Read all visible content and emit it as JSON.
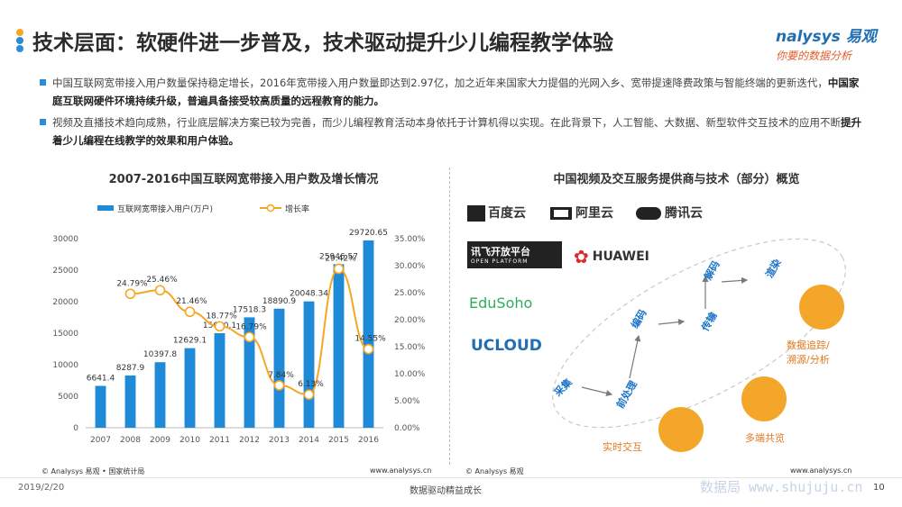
{
  "header": {
    "title": "技术层面：软硬件进一步普及，技术驱动提升少儿编程教学体验",
    "dot_colors": [
      "#f5a623",
      "#2b8bd6",
      "#2b8bd6"
    ],
    "logo_en": "nalysys 易观",
    "logo_cn": "你要的数据分析"
  },
  "bullets": [
    {
      "text_a": "中国互联网宽带接入用户数量保持稳定增长，2016年宽带接入用户数量即达到2.97亿，加之近年来国家大力提倡的光网入乡、宽带提速降费政策与智能终端的更新迭代，",
      "strong": "中国家庭互联网硬件环境持续升级，普遍具备接受较高质量的远程教育的能力。"
    },
    {
      "text_a": "视频及直播技术趋向成熟，行业底层解决方案已较为完善，而少儿编程教育活动本身依托于计算机得以实现。在此背景下，人工智能、大数据、新型软件交互技术的应用不断",
      "strong": "提升着少儿编程在线教学的效果和用户体验。"
    }
  ],
  "left_panel": {
    "source": "© Analysys 易观 • 国家统计局",
    "url": "www.analysys.cn"
  },
  "chart_data": {
    "type": "bar",
    "title": "2007-2016中国互联网宽带接入用户数及增长情况",
    "categories": [
      "2007",
      "2008",
      "2009",
      "2010",
      "2011",
      "2012",
      "2013",
      "2014",
      "2015",
      "2016"
    ],
    "series": [
      {
        "name": "互联网宽带接入用户(万户)",
        "type": "bar",
        "axis": "left",
        "color": "#1f8ad8",
        "values": [
          6641.4,
          8287.9,
          10397.8,
          12629.1,
          15000.1,
          17518.3,
          18890.9,
          20048.34,
          25946.57,
          29720.65
        ],
        "labels": [
          "6641.4",
          "8287.9",
          "10397.8",
          "12629.1",
          "15000.1",
          "17518.3",
          "18890.9",
          "20048.34",
          "25946.57",
          "29720.65"
        ]
      },
      {
        "name": "增长率",
        "type": "line",
        "axis": "right",
        "color": "#f5a623",
        "values": [
          null,
          24.79,
          25.46,
          21.46,
          18.77,
          16.79,
          7.84,
          6.13,
          29.42,
          14.55
        ],
        "labels": [
          "",
          "24.79%",
          "25.46%",
          "21.46%",
          "18.77%",
          "16.79%",
          "7.84%",
          "6.13%",
          "29.42%",
          "14.55%"
        ]
      }
    ],
    "y_left": {
      "min": 0,
      "max": 30000,
      "ticks": [
        "0",
        "5000",
        "10000",
        "15000",
        "20000",
        "25000",
        "30000"
      ]
    },
    "y_right": {
      "min": 0,
      "max": 35,
      "ticks": [
        "0.00%",
        "5.00%",
        "10.00%",
        "15.00%",
        "20.00%",
        "25.00%",
        "30.00%",
        "35.00%"
      ]
    },
    "grid": false,
    "legend": "top-left"
  },
  "right_panel": {
    "title": "中国视频及交互服务提供商与技术（部分）概览",
    "brands": [
      {
        "name": "百度云",
        "color": "#222222"
      },
      {
        "name": "阿里云",
        "color": "#222222"
      },
      {
        "name": "腾讯云",
        "color": "#222222"
      },
      {
        "name": "讯飞开放平台",
        "sub": "OPEN PLATFORM",
        "color": "#222222"
      },
      {
        "name": "HUAWEI",
        "color": "#222222"
      },
      {
        "name": "EduSoho",
        "color": "#2dae5c"
      },
      {
        "name": "UCLOUD",
        "color": "#1f6fb2"
      }
    ],
    "steps": [
      "采集",
      "前处理",
      "编码",
      "传输",
      "解码",
      "渲染"
    ],
    "features": [
      {
        "label": "数据追踪/\n溯源/分析",
        "icon": "data-analysis-icon"
      },
      {
        "label": "多端共览",
        "icon": "multi-device-icon"
      },
      {
        "label": "实时交互",
        "icon": "realtime-interaction-icon"
      }
    ],
    "source": "© Analysys 易观",
    "url": "www.analysys.cn"
  },
  "footer": {
    "date": "2019/2/20",
    "slogan": "数据驱动精益成长",
    "page": "10",
    "watermark": "数据局  www.shujuju.cn"
  }
}
